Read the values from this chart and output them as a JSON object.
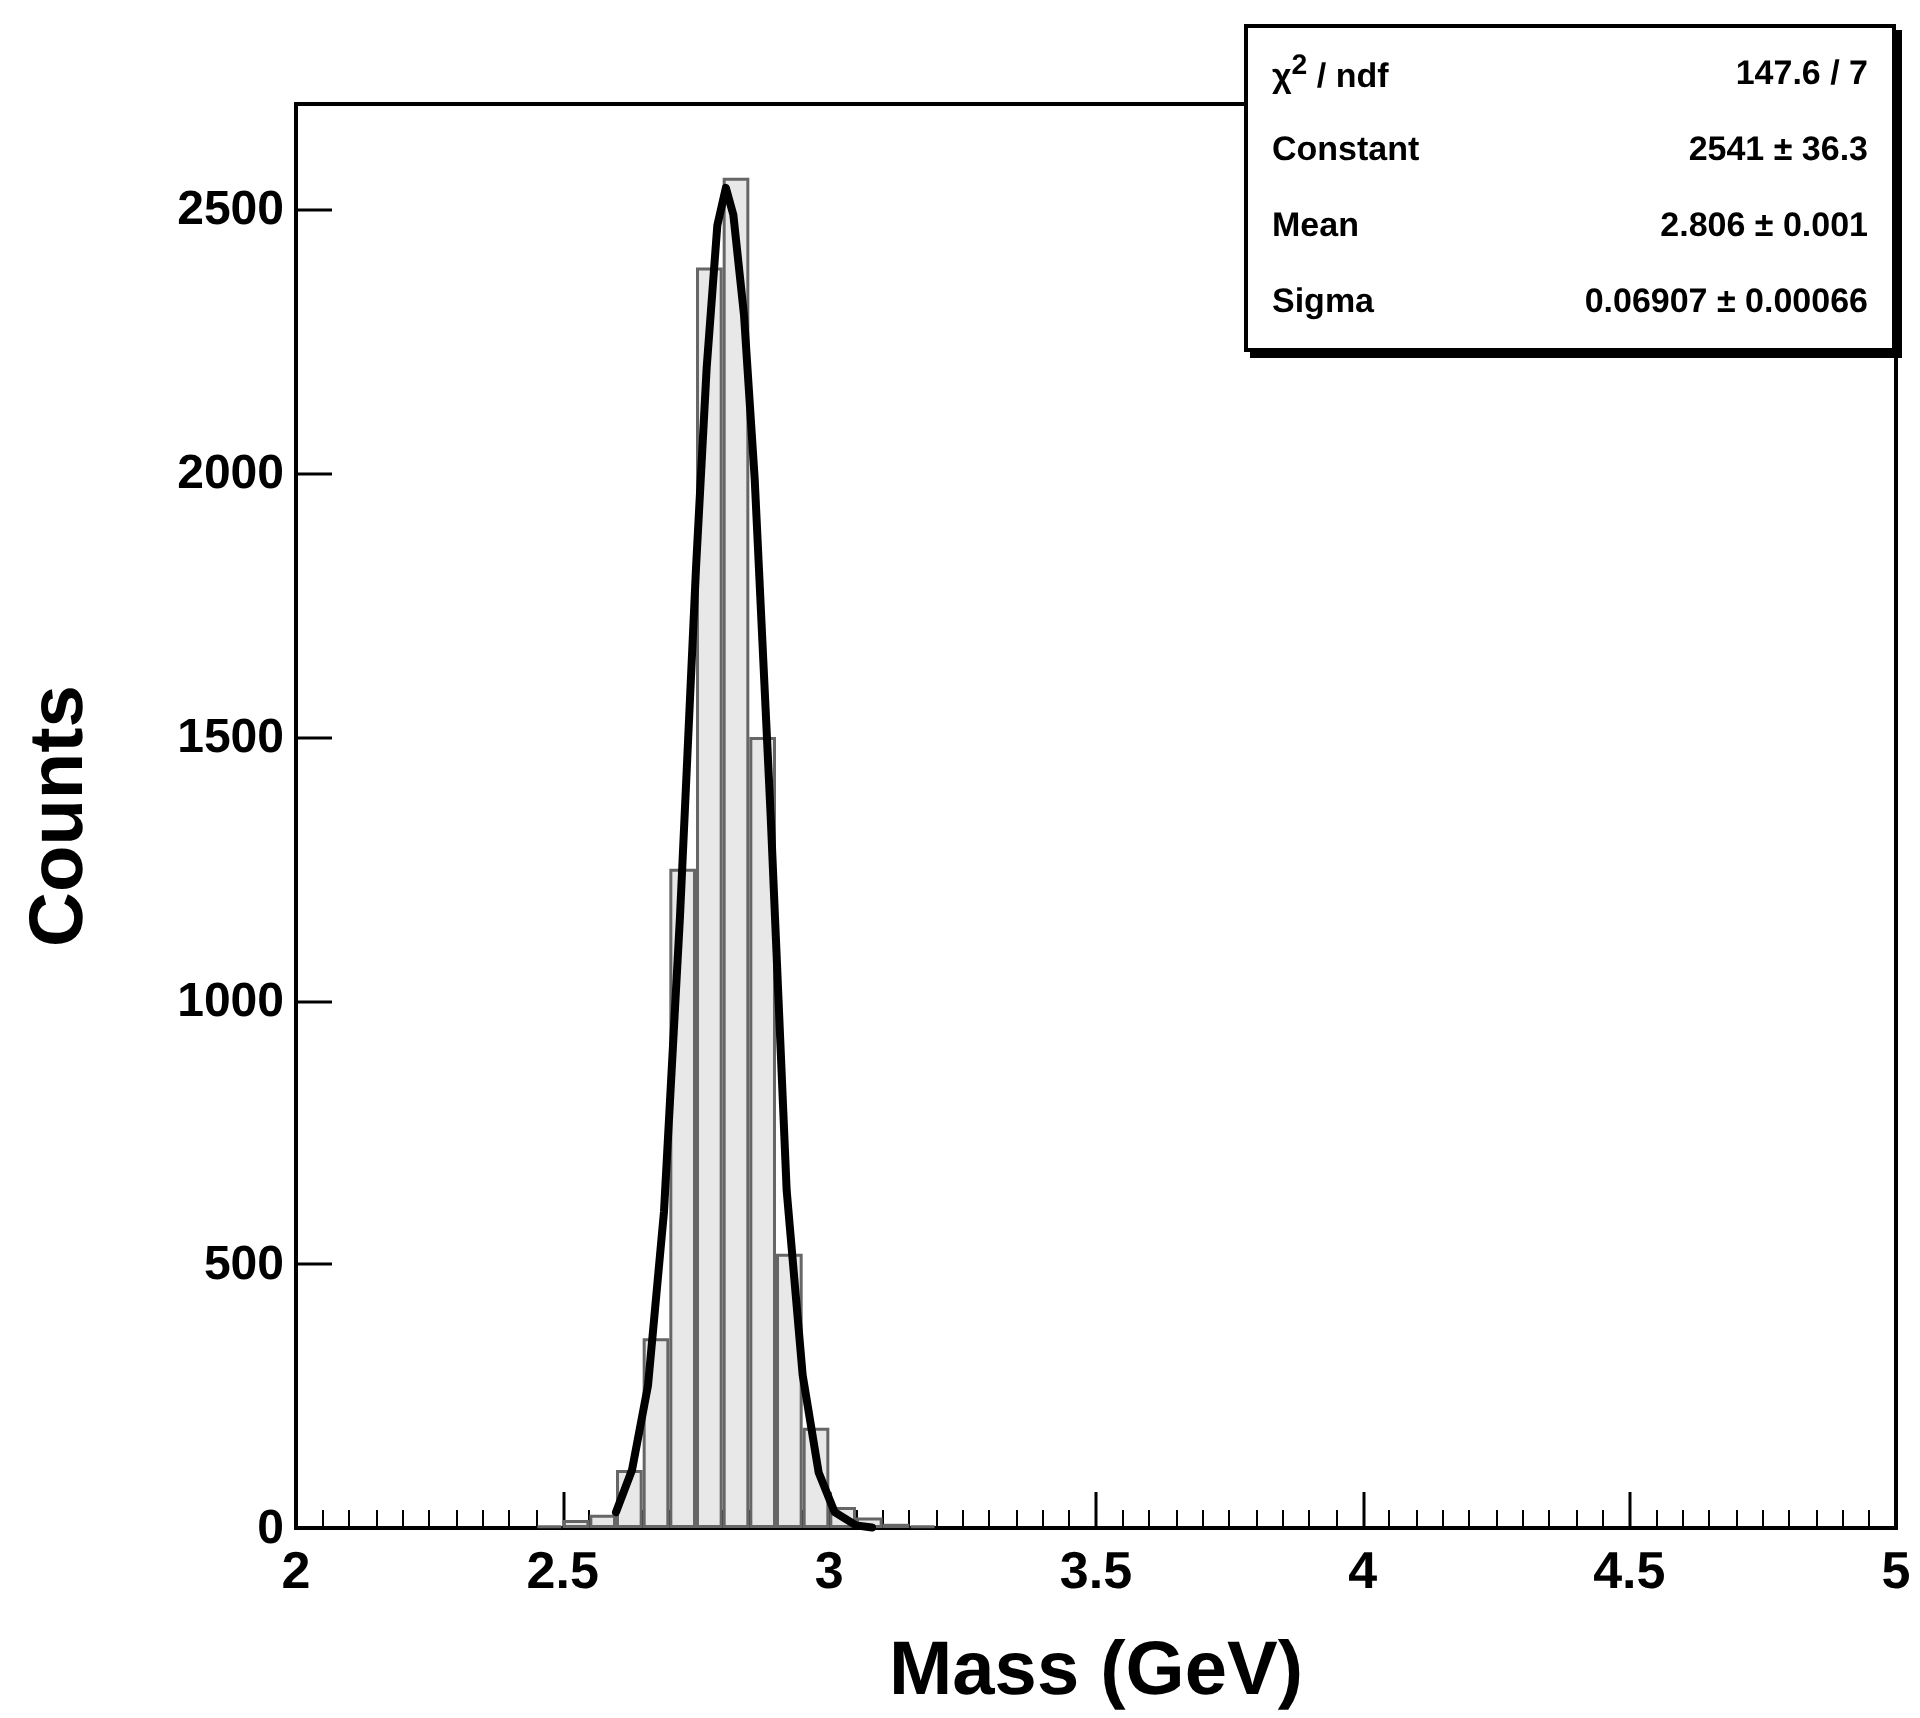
{
  "chart_data": {
    "type": "histogram",
    "xlabel": "Mass (GeV)",
    "ylabel": "Counts",
    "xlim": [
      2,
      5
    ],
    "xticks": [
      2,
      2.5,
      3,
      3.5,
      4,
      4.5,
      5
    ],
    "ylim": [
      0,
      2700
    ],
    "yticks": [
      0,
      500,
      1000,
      1500,
      2000,
      2500
    ],
    "grid": false,
    "marker": "none",
    "line_style": "solid",
    "color": "#666666",
    "bins": [
      2.45,
      2.5,
      2.55,
      2.6,
      2.65,
      2.7,
      2.75,
      2.8,
      2.85,
      2.9,
      2.95,
      3.0,
      3.05,
      3.1,
      3.15,
      3.2
    ],
    "values": [
      5,
      15,
      25,
      110,
      360,
      1250,
      2390,
      2560,
      1500,
      520,
      190,
      40,
      20,
      8,
      5
    ],
    "series": [
      {
        "type": "line",
        "color": "#000000",
        "x": [
          2.6,
          2.63,
          2.66,
          2.69,
          2.72,
          2.75,
          2.77,
          2.79,
          2.806,
          2.82,
          2.84,
          2.86,
          2.89,
          2.92,
          2.95,
          2.98,
          3.01,
          3.05,
          3.08
        ],
        "values": [
          30,
          110,
          270,
          600,
          1160,
          1820,
          2200,
          2470,
          2541,
          2490,
          2300,
          1990,
          1350,
          640,
          290,
          105,
          30,
          5,
          1
        ]
      }
    ],
    "annotations": [
      "χ$^{2}$ / ndf",
      "147.6 / 7",
      "Constant",
      "2541 ± 36.3",
      "Mean",
      "2.806 ± 0.001",
      "Sigma",
      "0.06907 ± 0.00066"
    ]
  }
}
